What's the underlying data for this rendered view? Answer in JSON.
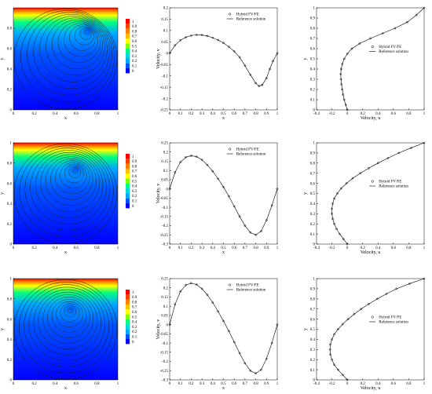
{
  "colors": {
    "palette": [
      "#0000ff",
      "#0055ff",
      "#00aaff",
      "#00d9d9",
      "#00ff80",
      "#7fff00",
      "#ffff00",
      "#ffbf00",
      "#ff8000",
      "#ff4000",
      "#ff0000"
    ]
  },
  "chart_data": [
    {
      "type": "heatmap",
      "variant": "contour",
      "row": 0,
      "xlabel": "x",
      "ylabel": "y",
      "xlim": [
        0,
        1
      ],
      "ylim": [
        0,
        1
      ],
      "xticks": [
        "0",
        "0.2",
        "0.4",
        "0.6",
        "0.8",
        "1"
      ],
      "yticks": [
        "0",
        "0.2",
        "0.4",
        "0.6",
        "0.8"
      ],
      "vortex_center": [
        0.72,
        0.78
      ],
      "colorbar": {
        "labels": [
          "1",
          "0.9",
          "0.8",
          "0.7",
          "0.6",
          "0.5",
          "0.4",
          "0.3",
          "0.2",
          "0.1",
          "0"
        ]
      }
    },
    {
      "type": "line",
      "row": 0,
      "xlabel": "x",
      "ylabel": "Velocity, v",
      "xlim": [
        0,
        1
      ],
      "ylim": [
        -0.25,
        0.2
      ],
      "xticks": [
        "0",
        "0.1",
        "0.2",
        "0.3",
        "0.4",
        "0.5",
        "0.6",
        "0.7",
        "0.8",
        "0.9",
        "1"
      ],
      "yticks": [
        "0.2",
        "0.15",
        "0.1",
        "0.05",
        "0",
        "-0.05",
        "-0.1",
        "-0.15",
        "-0.2",
        "-0.25"
      ],
      "legend": {
        "position": "top-right",
        "entries": [
          "Hybrid FV/FE",
          "Reference solution"
        ]
      },
      "series": [
        {
          "name": "Hybrid FV/FE",
          "x": [
            0,
            0.05,
            0.1,
            0.15,
            0.2,
            0.25,
            0.3,
            0.35,
            0.4,
            0.45,
            0.5,
            0.55,
            0.6,
            0.65,
            0.7,
            0.75,
            0.8,
            0.83,
            0.86,
            0.9,
            0.93,
            0.96,
            1
          ],
          "y": [
            0,
            0.035,
            0.057,
            0.07,
            0.078,
            0.081,
            0.08,
            0.076,
            0.068,
            0.058,
            0.045,
            0.028,
            0.008,
            -0.018,
            -0.055,
            -0.095,
            -0.132,
            -0.145,
            -0.14,
            -0.11,
            -0.07,
            -0.035,
            0
          ]
        },
        {
          "name": "Reference solution",
          "x": [
            0,
            0.05,
            0.1,
            0.15,
            0.2,
            0.25,
            0.3,
            0.35,
            0.4,
            0.45,
            0.5,
            0.55,
            0.6,
            0.65,
            0.7,
            0.75,
            0.8,
            0.83,
            0.86,
            0.9,
            0.93,
            0.96,
            1
          ],
          "y": [
            0,
            0.035,
            0.057,
            0.07,
            0.078,
            0.081,
            0.08,
            0.076,
            0.068,
            0.058,
            0.045,
            0.028,
            0.008,
            -0.018,
            -0.055,
            -0.095,
            -0.132,
            -0.145,
            -0.14,
            -0.11,
            -0.07,
            -0.035,
            0
          ]
        }
      ]
    },
    {
      "type": "line",
      "row": 0,
      "xlabel": "Velocity, u",
      "ylabel": "y",
      "xlim": [
        -0.4,
        1
      ],
      "ylim": [
        0,
        1
      ],
      "xticks": [
        "-0.4",
        "-0.2",
        "0",
        "0.2",
        "0.4",
        "0.6",
        "0.8",
        "1"
      ],
      "yticks": [
        "0",
        "0.1",
        "0.2",
        "0.3",
        "0.4",
        "0.5",
        "0.6",
        "0.7",
        "0.8",
        "0.9",
        "1"
      ],
      "legend": {
        "position": "middle-right",
        "entries": [
          "Hybrid FV/FE",
          "Reference solution"
        ]
      },
      "series": [
        {
          "name": "Hybrid FV/FE",
          "x": [
            0,
            -0.02,
            -0.04,
            -0.055,
            -0.065,
            -0.075,
            -0.082,
            -0.085,
            -0.08,
            -0.065,
            -0.04,
            0,
            0.06,
            0.16,
            0.3,
            0.46,
            0.62,
            0.78,
            0.9,
            1
          ],
          "y": [
            0,
            0.05,
            0.1,
            0.15,
            0.2,
            0.25,
            0.3,
            0.35,
            0.4,
            0.45,
            0.5,
            0.55,
            0.6,
            0.65,
            0.7,
            0.75,
            0.8,
            0.86,
            0.93,
            1
          ]
        },
        {
          "name": "Reference solution",
          "x": [
            0,
            -0.02,
            -0.04,
            -0.055,
            -0.065,
            -0.075,
            -0.082,
            -0.085,
            -0.08,
            -0.065,
            -0.04,
            0,
            0.06,
            0.16,
            0.3,
            0.46,
            0.62,
            0.78,
            0.9,
            1
          ],
          "y": [
            0,
            0.05,
            0.1,
            0.15,
            0.2,
            0.25,
            0.3,
            0.35,
            0.4,
            0.45,
            0.5,
            0.55,
            0.6,
            0.65,
            0.7,
            0.75,
            0.8,
            0.86,
            0.93,
            1
          ]
        }
      ]
    },
    {
      "type": "heatmap",
      "variant": "contour",
      "row": 1,
      "xlabel": "x",
      "ylabel": "y",
      "xlim": [
        0,
        1
      ],
      "ylim": [
        0,
        1
      ],
      "xticks": [
        "0",
        "0.2",
        "0.4",
        "0.6",
        "0.8",
        "1"
      ],
      "yticks": [
        "0",
        "0.2",
        "0.4",
        "0.6",
        "0.8",
        "1"
      ],
      "vortex_center": [
        0.6,
        0.74
      ],
      "colorbar": {
        "labels": [
          "1",
          "0.9",
          "0.8",
          "0.7",
          "0.6",
          "0.5",
          "0.4",
          "0.3",
          "0.2",
          "0.1",
          "0"
        ]
      }
    },
    {
      "type": "line",
      "row": 1,
      "xlabel": "x",
      "ylabel": "Velocity, v",
      "xlim": [
        0,
        1
      ],
      "ylim": [
        -0.3,
        0.25
      ],
      "xticks": [
        "0",
        "0.1",
        "0.2",
        "0.3",
        "0.4",
        "0.5",
        "0.6",
        "0.7",
        "0.8",
        "0.9",
        "1"
      ],
      "yticks": [
        "0.25",
        "0.2",
        "0.15",
        "0.1",
        "0.05",
        "0",
        "-0.05",
        "-0.1",
        "-0.15",
        "-0.2",
        "-0.25",
        "-0.3"
      ],
      "legend": {
        "position": "top-right",
        "entries": [
          "Hybrid FV/FE",
          "Reference solution"
        ]
      },
      "series": [
        {
          "name": "Hybrid FV/FE",
          "x": [
            0,
            0.05,
            0.1,
            0.15,
            0.2,
            0.25,
            0.3,
            0.35,
            0.4,
            0.45,
            0.5,
            0.55,
            0.6,
            0.65,
            0.7,
            0.75,
            0.8,
            0.85,
            0.9,
            0.95,
            1
          ],
          "y": [
            0,
            0.09,
            0.145,
            0.172,
            0.18,
            0.175,
            0.158,
            0.13,
            0.095,
            0.055,
            0.01,
            -0.04,
            -0.095,
            -0.15,
            -0.2,
            -0.237,
            -0.25,
            -0.23,
            -0.17,
            -0.09,
            0
          ]
        },
        {
          "name": "Reference solution",
          "x": [
            0,
            0.05,
            0.1,
            0.15,
            0.2,
            0.25,
            0.3,
            0.35,
            0.4,
            0.45,
            0.5,
            0.55,
            0.6,
            0.65,
            0.7,
            0.75,
            0.8,
            0.85,
            0.9,
            0.95,
            1
          ],
          "y": [
            0,
            0.09,
            0.145,
            0.172,
            0.18,
            0.175,
            0.158,
            0.13,
            0.095,
            0.055,
            0.01,
            -0.04,
            -0.095,
            -0.15,
            -0.2,
            -0.237,
            -0.25,
            -0.23,
            -0.17,
            -0.09,
            0
          ]
        }
      ]
    },
    {
      "type": "line",
      "row": 1,
      "xlabel": "Velocity, u",
      "ylabel": "y",
      "xlim": [
        -0.4,
        1
      ],
      "ylim": [
        0,
        1
      ],
      "xticks": [
        "-0.4",
        "-0.2",
        "0",
        "0.2",
        "0.4",
        "0.6",
        "0.8",
        "1"
      ],
      "yticks": [
        "0",
        "0.1",
        "0.2",
        "0.3",
        "0.4",
        "0.5",
        "0.6",
        "0.7",
        "0.8",
        "0.9",
        "1"
      ],
      "legend": {
        "position": "middle-right",
        "entries": [
          "Hybrid FV/FE",
          "Reference solution"
        ]
      },
      "series": [
        {
          "name": "Hybrid FV/FE",
          "x": [
            0,
            -0.05,
            -0.1,
            -0.14,
            -0.17,
            -0.19,
            -0.2,
            -0.2,
            -0.19,
            -0.17,
            -0.13,
            -0.08,
            -0.01,
            0.07,
            0.17,
            0.28,
            0.4,
            0.53,
            0.67,
            0.83,
            1
          ],
          "y": [
            0,
            0.05,
            0.1,
            0.15,
            0.2,
            0.25,
            0.3,
            0.35,
            0.4,
            0.45,
            0.5,
            0.55,
            0.6,
            0.65,
            0.7,
            0.75,
            0.8,
            0.85,
            0.9,
            0.95,
            1
          ]
        },
        {
          "name": "Reference solution",
          "x": [
            0,
            -0.05,
            -0.1,
            -0.14,
            -0.17,
            -0.19,
            -0.2,
            -0.2,
            -0.19,
            -0.17,
            -0.13,
            -0.08,
            -0.01,
            0.07,
            0.17,
            0.28,
            0.4,
            0.53,
            0.67,
            0.83,
            1
          ],
          "y": [
            0,
            0.05,
            0.1,
            0.15,
            0.2,
            0.25,
            0.3,
            0.35,
            0.4,
            0.45,
            0.5,
            0.55,
            0.6,
            0.65,
            0.7,
            0.75,
            0.8,
            0.85,
            0.9,
            0.95,
            1
          ]
        }
      ]
    },
    {
      "type": "heatmap",
      "variant": "contour",
      "row": 2,
      "xlabel": "x",
      "ylabel": "y",
      "xlim": [
        0,
        1
      ],
      "ylim": [
        0,
        1
      ],
      "xticks": [
        "0",
        "0.2",
        "0.4",
        "0.6",
        "0.8",
        "1"
      ],
      "yticks": [
        "0",
        "0.2",
        "0.4",
        "0.6",
        "0.8",
        "1"
      ],
      "vortex_center": [
        0.55,
        0.7
      ],
      "colorbar": {
        "labels": [
          "1",
          "0.9",
          "0.8",
          "0.7",
          "0.6",
          "0.5",
          "0.4",
          "0.3",
          "0.2",
          "0.1",
          "0"
        ]
      }
    },
    {
      "type": "line",
      "row": 2,
      "xlabel": "x",
      "ylabel": "Velocity, v",
      "xlim": [
        0,
        1
      ],
      "ylim": [
        -0.3,
        0.25
      ],
      "xticks": [
        "0",
        "0.1",
        "0.2",
        "0.3",
        "0.4",
        "0.5",
        "0.6",
        "0.7",
        "0.8",
        "0.9",
        "1"
      ],
      "yticks": [
        "0.25",
        "0.2",
        "0.15",
        "0.1",
        "0.05",
        "0",
        "-0.05",
        "-0.1",
        "-0.15",
        "-0.2",
        "-0.25",
        "-0.3"
      ],
      "legend": {
        "position": "top-right",
        "entries": [
          "Hybrid FV/FE",
          "Reference solution"
        ]
      },
      "series": [
        {
          "name": "Hybrid FV/FE",
          "x": [
            0,
            0.05,
            0.1,
            0.15,
            0.2,
            0.25,
            0.3,
            0.35,
            0.4,
            0.45,
            0.5,
            0.55,
            0.6,
            0.65,
            0.7,
            0.75,
            0.8,
            0.85,
            0.9,
            0.95,
            1
          ],
          "y": [
            0,
            0.11,
            0.18,
            0.215,
            0.225,
            0.218,
            0.195,
            0.162,
            0.12,
            0.072,
            0.02,
            -0.035,
            -0.095,
            -0.155,
            -0.21,
            -0.25,
            -0.265,
            -0.245,
            -0.185,
            -0.1,
            0
          ]
        },
        {
          "name": "Reference solution",
          "x": [
            0,
            0.05,
            0.1,
            0.15,
            0.2,
            0.25,
            0.3,
            0.35,
            0.4,
            0.45,
            0.5,
            0.55,
            0.6,
            0.65,
            0.7,
            0.75,
            0.8,
            0.85,
            0.9,
            0.95,
            1
          ],
          "y": [
            0,
            0.11,
            0.18,
            0.215,
            0.225,
            0.218,
            0.195,
            0.162,
            0.12,
            0.072,
            0.02,
            -0.035,
            -0.095,
            -0.155,
            -0.21,
            -0.25,
            -0.265,
            -0.245,
            -0.185,
            -0.1,
            0
          ]
        }
      ]
    },
    {
      "type": "line",
      "row": 2,
      "xlabel": "Velocity, u",
      "ylabel": "y",
      "xlim": [
        -0.4,
        1
      ],
      "ylim": [
        0,
        1
      ],
      "xticks": [
        "-0.4",
        "-0.2",
        "0",
        "0.2",
        "0.4",
        "0.6",
        "0.8",
        "1"
      ],
      "yticks": [
        "0",
        "0.1",
        "0.2",
        "0.3",
        "0.4",
        "0.5",
        "0.6",
        "0.7",
        "0.8",
        "0.9",
        "1"
      ],
      "legend": {
        "position": "middle-right",
        "entries": [
          "Hybrid FV/FE",
          "Reference solution"
        ]
      },
      "series": [
        {
          "name": "Hybrid FV/FE",
          "x": [
            0,
            -0.06,
            -0.12,
            -0.17,
            -0.2,
            -0.22,
            -0.225,
            -0.22,
            -0.2,
            -0.17,
            -0.12,
            -0.06,
            0.01,
            0.09,
            0.18,
            0.28,
            0.39,
            0.51,
            0.64,
            0.81,
            1
          ],
          "y": [
            0,
            0.05,
            0.1,
            0.15,
            0.2,
            0.25,
            0.3,
            0.35,
            0.4,
            0.45,
            0.5,
            0.55,
            0.6,
            0.65,
            0.7,
            0.75,
            0.8,
            0.85,
            0.9,
            0.95,
            1
          ]
        },
        {
          "name": "Reference solution",
          "x": [
            0,
            -0.06,
            -0.12,
            -0.17,
            -0.2,
            -0.22,
            -0.225,
            -0.22,
            -0.2,
            -0.17,
            -0.12,
            -0.06,
            0.01,
            0.09,
            0.18,
            0.28,
            0.39,
            0.51,
            0.64,
            0.81,
            1
          ],
          "y": [
            0,
            0.05,
            0.1,
            0.15,
            0.2,
            0.25,
            0.3,
            0.35,
            0.4,
            0.45,
            0.5,
            0.55,
            0.6,
            0.65,
            0.7,
            0.75,
            0.8,
            0.85,
            0.9,
            0.95,
            1
          ]
        }
      ]
    }
  ]
}
